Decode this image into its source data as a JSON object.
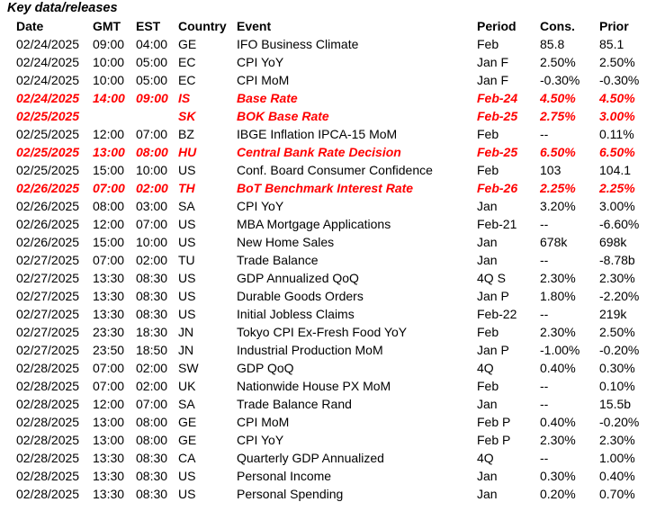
{
  "title": "Key data/releases",
  "colors": {
    "text": "#000000",
    "highlight": "#ff0000",
    "background": "#ffffff"
  },
  "table": {
    "columns": [
      "Date",
      "GMT",
      "EST",
      "Country",
      "Event",
      "Period",
      "Cons.",
      "Prior"
    ],
    "rows": [
      {
        "date": "02/24/2025",
        "gmt": "09:00",
        "est": "04:00",
        "country": "GE",
        "event": "IFO Business Climate",
        "period": "Feb",
        "cons": "85.8",
        "prior": "85.1",
        "highlight": false
      },
      {
        "date": "02/24/2025",
        "gmt": "10:00",
        "est": "05:00",
        "country": "EC",
        "event": "CPI YoY",
        "period": "Jan F",
        "cons": "2.50%",
        "prior": "2.50%",
        "highlight": false
      },
      {
        "date": "02/24/2025",
        "gmt": "10:00",
        "est": "05:00",
        "country": "EC",
        "event": "CPI MoM",
        "period": "Jan F",
        "cons": "-0.30%",
        "prior": "-0.30%",
        "highlight": false
      },
      {
        "date": "02/24/2025",
        "gmt": "14:00",
        "est": "09:00",
        "country": "IS",
        "event": "Base Rate",
        "period": "Feb-24",
        "cons": "4.50%",
        "prior": "4.50%",
        "highlight": true
      },
      {
        "date": "02/25/2025",
        "gmt": "",
        "est": "",
        "country": "SK",
        "event": "BOK Base Rate",
        "period": "Feb-25",
        "cons": "2.75%",
        "prior": "3.00%",
        "highlight": true
      },
      {
        "date": "02/25/2025",
        "gmt": "12:00",
        "est": "07:00",
        "country": "BZ",
        "event": "IBGE Inflation IPCA-15 MoM",
        "period": "Feb",
        "cons": "--",
        "prior": "0.11%",
        "highlight": false
      },
      {
        "date": "02/25/2025",
        "gmt": "13:00",
        "est": "08:00",
        "country": "HU",
        "event": "Central Bank Rate Decision",
        "period": "Feb-25",
        "cons": "6.50%",
        "prior": "6.50%",
        "highlight": true
      },
      {
        "date": "02/25/2025",
        "gmt": "15:00",
        "est": "10:00",
        "country": "US",
        "event": "Conf. Board Consumer Confidence",
        "period": "Feb",
        "cons": "103",
        "prior": "104.1",
        "highlight": false
      },
      {
        "date": "02/26/2025",
        "gmt": "07:00",
        "est": "02:00",
        "country": "TH",
        "event": "BoT Benchmark Interest Rate",
        "period": "Feb-26",
        "cons": "2.25%",
        "prior": "2.25%",
        "highlight": true
      },
      {
        "date": "02/26/2025",
        "gmt": "08:00",
        "est": "03:00",
        "country": "SA",
        "event": "CPI YoY",
        "period": "Jan",
        "cons": "3.20%",
        "prior": "3.00%",
        "highlight": false
      },
      {
        "date": "02/26/2025",
        "gmt": "12:00",
        "est": "07:00",
        "country": "US",
        "event": "MBA Mortgage Applications",
        "period": "Feb-21",
        "cons": "--",
        "prior": "-6.60%",
        "highlight": false
      },
      {
        "date": "02/26/2025",
        "gmt": "15:00",
        "est": "10:00",
        "country": "US",
        "event": "New Home Sales",
        "period": "Jan",
        "cons": "678k",
        "prior": "698k",
        "highlight": false
      },
      {
        "date": "02/27/2025",
        "gmt": "07:00",
        "est": "02:00",
        "country": "TU",
        "event": "Trade Balance",
        "period": "Jan",
        "cons": "--",
        "prior": "-8.78b",
        "highlight": false
      },
      {
        "date": "02/27/2025",
        "gmt": "13:30",
        "est": "08:30",
        "country": "US",
        "event": "GDP Annualized QoQ",
        "period": "4Q S",
        "cons": "2.30%",
        "prior": "2.30%",
        "highlight": false
      },
      {
        "date": "02/27/2025",
        "gmt": "13:30",
        "est": "08:30",
        "country": "US",
        "event": "Durable Goods Orders",
        "period": "Jan P",
        "cons": "1.80%",
        "prior": "-2.20%",
        "highlight": false
      },
      {
        "date": "02/27/2025",
        "gmt": "13:30",
        "est": "08:30",
        "country": "US",
        "event": "Initial Jobless Claims",
        "period": "Feb-22",
        "cons": "--",
        "prior": "219k",
        "highlight": false
      },
      {
        "date": "02/27/2025",
        "gmt": "23:30",
        "est": "18:30",
        "country": "JN",
        "event": "Tokyo CPI Ex-Fresh Food YoY",
        "period": "Feb",
        "cons": "2.30%",
        "prior": "2.50%",
        "highlight": false
      },
      {
        "date": "02/27/2025",
        "gmt": "23:50",
        "est": "18:50",
        "country": "JN",
        "event": "Industrial Production MoM",
        "period": "Jan P",
        "cons": "-1.00%",
        "prior": "-0.20%",
        "highlight": false
      },
      {
        "date": "02/28/2025",
        "gmt": "07:00",
        "est": "02:00",
        "country": "SW",
        "event": "GDP QoQ",
        "period": "4Q",
        "cons": "0.40%",
        "prior": "0.30%",
        "highlight": false
      },
      {
        "date": "02/28/2025",
        "gmt": "07:00",
        "est": "02:00",
        "country": "UK",
        "event": "Nationwide House PX MoM",
        "period": "Feb",
        "cons": "--",
        "prior": "0.10%",
        "highlight": false
      },
      {
        "date": "02/28/2025",
        "gmt": "12:00",
        "est": "07:00",
        "country": "SA",
        "event": "Trade Balance Rand",
        "period": "Jan",
        "cons": "--",
        "prior": "15.5b",
        "highlight": false
      },
      {
        "date": "02/28/2025",
        "gmt": "13:00",
        "est": "08:00",
        "country": "GE",
        "event": "CPI MoM",
        "period": "Feb P",
        "cons": "0.40%",
        "prior": "-0.20%",
        "highlight": false
      },
      {
        "date": "02/28/2025",
        "gmt": "13:00",
        "est": "08:00",
        "country": "GE",
        "event": "CPI YoY",
        "period": "Feb P",
        "cons": "2.30%",
        "prior": "2.30%",
        "highlight": false
      },
      {
        "date": "02/28/2025",
        "gmt": "13:30",
        "est": "08:30",
        "country": "CA",
        "event": "Quarterly GDP Annualized",
        "period": "4Q",
        "cons": "--",
        "prior": "1.00%",
        "highlight": false
      },
      {
        "date": "02/28/2025",
        "gmt": "13:30",
        "est": "08:30",
        "country": "US",
        "event": "Personal Income",
        "period": "Jan",
        "cons": "0.30%",
        "prior": "0.40%",
        "highlight": false
      },
      {
        "date": "02/28/2025",
        "gmt": "13:30",
        "est": "08:30",
        "country": "US",
        "event": "Personal Spending",
        "period": "Jan",
        "cons": "0.20%",
        "prior": "0.70%",
        "highlight": false
      }
    ]
  }
}
